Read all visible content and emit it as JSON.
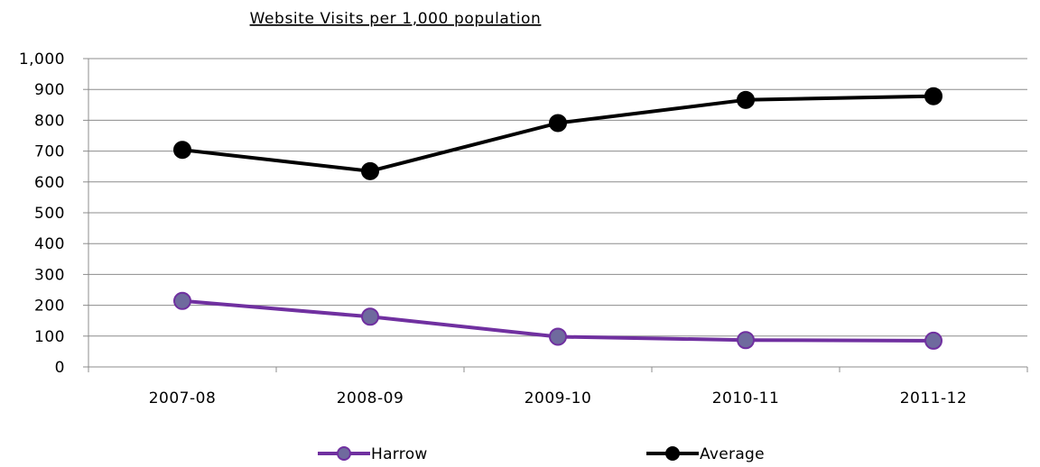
{
  "chart_data": {
    "type": "line",
    "title": "Website Visits per 1,000 population",
    "categories": [
      "2007-08",
      "2008-09",
      "2009-10",
      "2010-11",
      "2011-12"
    ],
    "series": [
      {
        "name": "Harrow",
        "values": [
          214,
          163,
          98,
          87,
          85
        ],
        "line_color": "#7030a0",
        "marker_fill": "#6f6a9e",
        "marker_stroke": "#7030a0"
      },
      {
        "name": "Average",
        "values": [
          704,
          635,
          791,
          866,
          878
        ],
        "line_color": "#000000",
        "marker_fill": "#000000",
        "marker_stroke": "#000000"
      }
    ],
    "ylim": [
      0,
      1000
    ],
    "yticks": [
      0,
      100,
      200,
      300,
      400,
      500,
      600,
      700,
      800,
      900,
      1000
    ],
    "ytick_labels": [
      "0",
      "100",
      "200",
      "300",
      "400",
      "500",
      "600",
      "700",
      "800",
      "900",
      "1,000"
    ],
    "grid": true,
    "gridline_color": "#8c8c8c",
    "legend_position": "bottom"
  }
}
